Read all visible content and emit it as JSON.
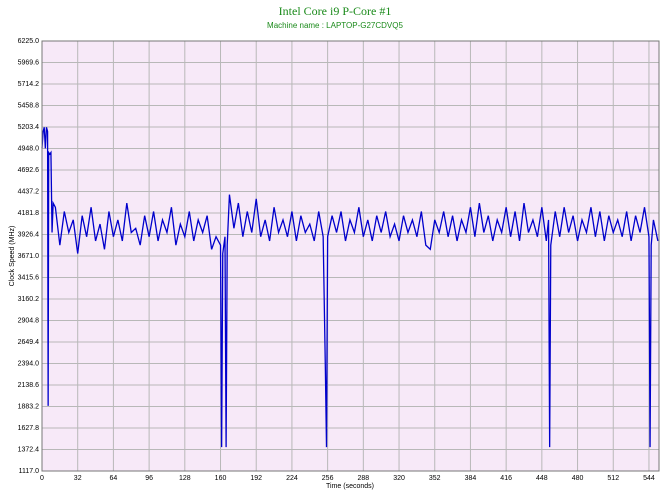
{
  "chart_data": {
    "type": "line",
    "title": "Intel Core i9 P-Core #1",
    "subtitle": "Machine name : LAPTOP-G27CDVQ5",
    "x_label": "Time (seconds)",
    "y_label": "Clock Speed (MHz)",
    "color": "#0000cc",
    "grid": true,
    "xlim": [
      0,
      553
    ],
    "xticks": [
      0,
      32,
      64,
      96,
      128,
      160,
      192,
      224,
      256,
      288,
      320,
      352,
      384,
      416,
      448,
      480,
      512,
      544
    ],
    "ylim": [
      1117,
      6225
    ],
    "yticks": [
      {
        "value": 1117,
        "label": "1117.0"
      },
      1372.4,
      1627.8,
      1883.2,
      2138.6,
      {
        "value": 2394,
        "label": "2394.0"
      },
      2649.4,
      2904.8,
      3160.2,
      3415.6,
      {
        "value": 3671,
        "label": "3671.0"
      },
      3926.4,
      4181.8,
      4437.2,
      4692.6,
      {
        "value": 4948,
        "label": "4948.0"
      },
      5203.4,
      5458.8,
      5714.2,
      5969.6,
      {
        "value": 6225,
        "label": "6225.0"
      }
    ],
    "x": [
      0,
      1,
      2,
      3,
      4,
      5,
      5.5,
      6,
      7,
      8,
      9,
      10,
      12,
      16,
      20,
      24,
      28,
      32,
      36,
      40,
      44,
      48,
      52,
      56,
      60,
      64,
      68,
      72,
      76,
      80,
      84,
      88,
      92,
      96,
      100,
      104,
      108,
      112,
      116,
      120,
      124,
      128,
      132,
      136,
      140,
      144,
      148,
      152,
      156,
      160,
      161,
      162,
      164,
      165,
      166,
      168,
      172,
      176,
      180,
      184,
      188,
      192,
      196,
      200,
      204,
      208,
      212,
      216,
      220,
      224,
      228,
      232,
      236,
      240,
      244,
      248,
      252,
      254,
      255,
      256,
      260,
      264,
      268,
      272,
      276,
      280,
      284,
      288,
      292,
      296,
      300,
      304,
      308,
      312,
      316,
      320,
      324,
      328,
      332,
      336,
      340,
      344,
      348,
      352,
      356,
      360,
      364,
      368,
      372,
      376,
      380,
      384,
      388,
      392,
      396,
      400,
      404,
      408,
      412,
      416,
      420,
      424,
      428,
      432,
      436,
      440,
      444,
      448,
      452,
      454,
      455,
      456,
      460,
      464,
      468,
      472,
      476,
      480,
      484,
      488,
      492,
      496,
      500,
      504,
      508,
      512,
      516,
      520,
      524,
      528,
      532,
      536,
      540,
      544,
      545,
      546,
      548,
      552
    ],
    "values": [
      4950,
      5150,
      5200,
      4950,
      5200,
      5150,
      1890,
      4900,
      4880,
      4900,
      3950,
      4300,
      4250,
      3800,
      4200,
      3950,
      4100,
      3700,
      4150,
      3900,
      4250,
      3850,
      4050,
      3750,
      4200,
      3900,
      4100,
      3850,
      4300,
      3950,
      4000,
      3800,
      4150,
      3900,
      4200,
      3850,
      4100,
      3950,
      4250,
      3800,
      4050,
      3900,
      4200,
      3850,
      4100,
      3950,
      4150,
      3750,
      3900,
      3800,
      1400,
      3700,
      3900,
      1400,
      3800,
      4400,
      4000,
      4300,
      3900,
      4200,
      3950,
      4350,
      3900,
      4100,
      3850,
      4250,
      3950,
      4100,
      3900,
      4200,
      3850,
      4150,
      3950,
      4050,
      3850,
      4200,
      3900,
      2300,
      1400,
      3900,
      4150,
      3950,
      4200,
      3850,
      4100,
      3950,
      4250,
      3900,
      4100,
      3850,
      4150,
      3950,
      4200,
      3900,
      4050,
      3850,
      4150,
      3950,
      4100,
      3900,
      4200,
      3800,
      3750,
      4100,
      3950,
      4200,
      3900,
      4150,
      3850,
      4100,
      3950,
      4250,
      3900,
      4300,
      3950,
      4150,
      3850,
      4100,
      3950,
      4250,
      3900,
      4200,
      3850,
      4300,
      3950,
      4100,
      3900,
      4250,
      3850,
      4100,
      1400,
      3800,
      4200,
      3900,
      4250,
      3950,
      4150,
      3850,
      4100,
      3950,
      4250,
      3900,
      4200,
      3850,
      4150,
      3950,
      4100,
      3900,
      4200,
      3850,
      4150,
      3950,
      4250,
      3900,
      1400,
      3800,
      4100,
      3850
    ]
  }
}
